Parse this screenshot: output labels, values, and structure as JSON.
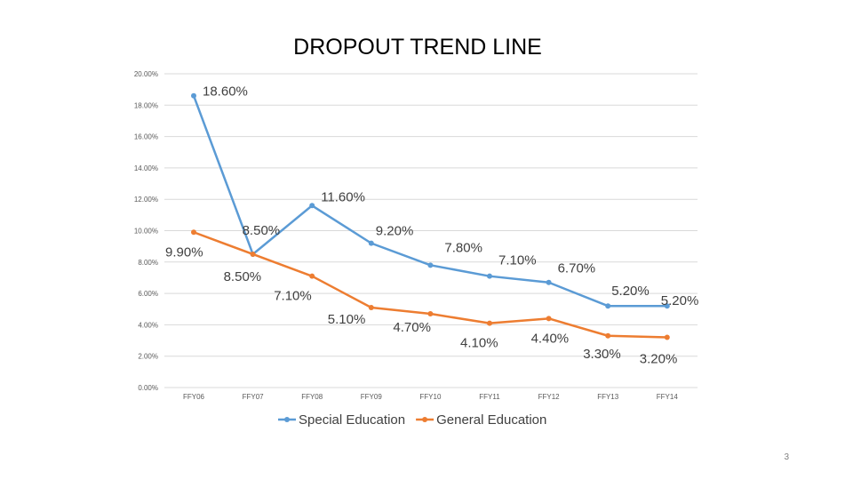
{
  "chart_data": {
    "type": "line",
    "title": "DROPOUT TREND LINE",
    "categories": [
      "FFY06",
      "FFY07",
      "FFY08",
      "FFY09",
      "FFY10",
      "FFY11",
      "FFY12",
      "FFY13",
      "FFY14"
    ],
    "yticks": [
      "0.00%",
      "2.00%",
      "4.00%",
      "6.00%",
      "8.00%",
      "10.00%",
      "12.00%",
      "14.00%",
      "16.00%",
      "18.00%",
      "20.00%"
    ],
    "ylim": [
      0,
      20
    ],
    "grid": true,
    "legend_position": "bottom",
    "series": [
      {
        "name": "Special Education",
        "color": "#5b9bd5",
        "values": [
          18.6,
          8.5,
          11.6,
          9.2,
          7.8,
          7.1,
          6.7,
          5.2,
          5.2
        ],
        "labels": [
          "18.60%",
          "8.50%",
          "11.60%",
          "9.20%",
          "7.80%",
          "7.10%",
          "6.70%",
          "5.20%",
          "5.20%"
        ]
      },
      {
        "name": "General Education",
        "color": "#ed7d31",
        "values": [
          9.9,
          8.5,
          7.1,
          5.1,
          4.7,
          4.1,
          4.4,
          3.3,
          3.2
        ],
        "labels": [
          "9.90%",
          "8.50%",
          "7.10%",
          "5.10%",
          "4.70%",
          "4.10%",
          "4.40%",
          "3.30%",
          "3.20%"
        ]
      }
    ]
  },
  "page_number": "3"
}
